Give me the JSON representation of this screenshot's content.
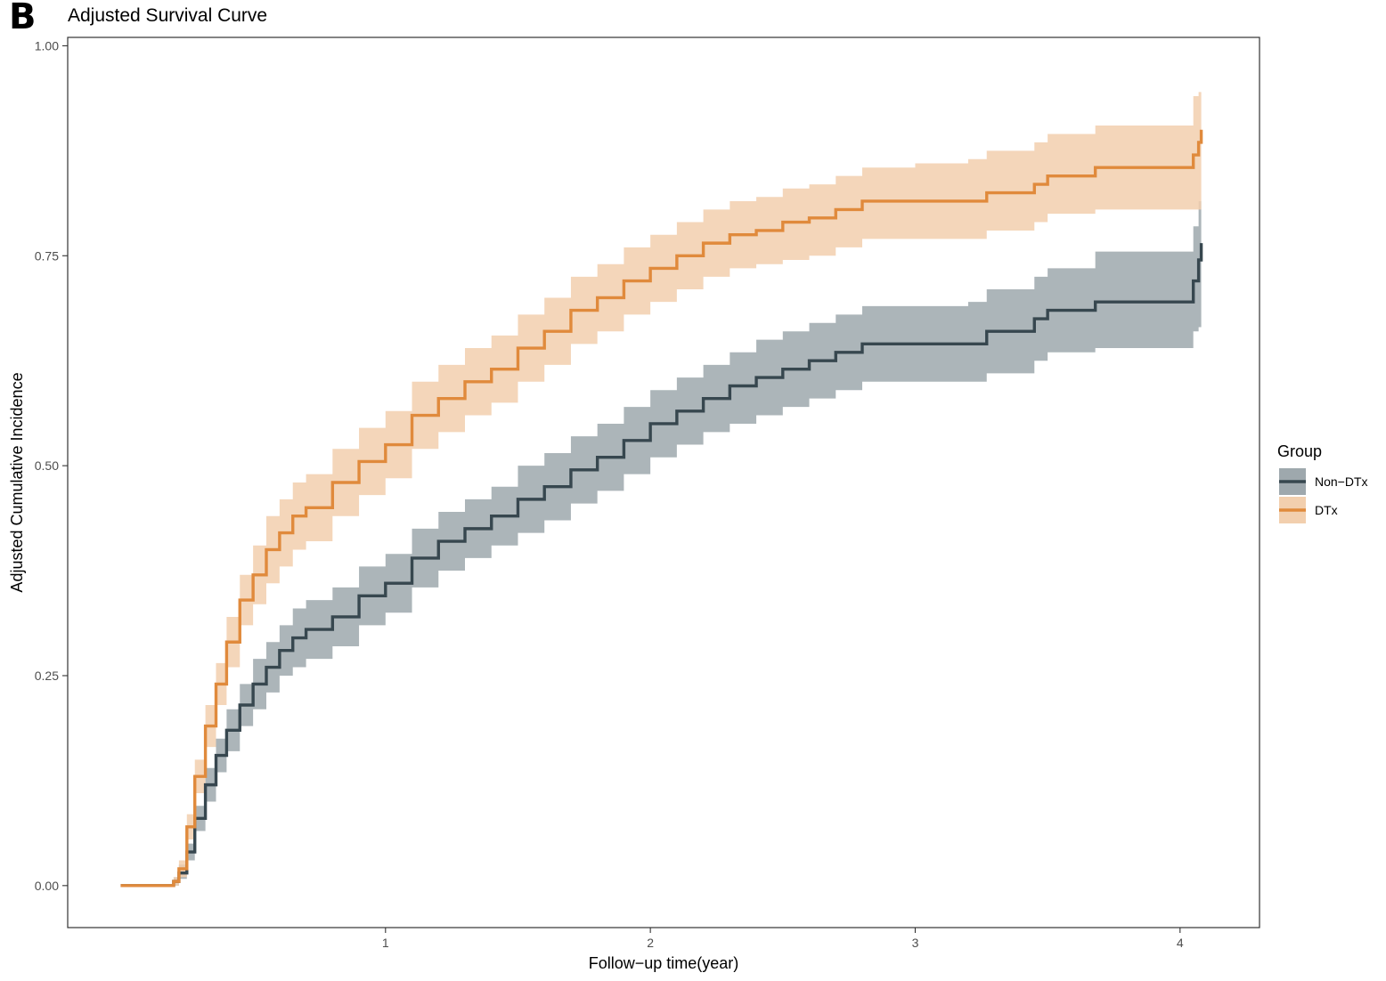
{
  "panel_label": "B",
  "chart_data": {
    "type": "line",
    "title": "Adjusted Survival Curve",
    "xlabel": "Follow−up time(year)",
    "ylabel": "Adjusted Cumulative Incidence",
    "xlim": [
      -0.2,
      4.3
    ],
    "ylim": [
      -0.05,
      1.01
    ],
    "x_ticks": [
      1,
      2,
      3,
      4
    ],
    "x_tick_labels": [
      "1",
      "2",
      "3",
      "4"
    ],
    "y_ticks": [
      0,
      0.25,
      0.5,
      0.75,
      1.0
    ],
    "y_tick_labels": [
      "0.00",
      "0.25",
      "0.50",
      "0.75",
      "1.00"
    ],
    "grid": false,
    "step": true,
    "legend": {
      "title": "Group",
      "position": "right"
    },
    "series": [
      {
        "name": "Non−DTx",
        "color": "#37474f",
        "band_color": "#9ea8ad",
        "x": [
          0.0,
          0.18,
          0.2,
          0.22,
          0.25,
          0.28,
          0.32,
          0.36,
          0.4,
          0.45,
          0.5,
          0.55,
          0.6,
          0.65,
          0.7,
          0.8,
          0.9,
          1.0,
          1.1,
          1.2,
          1.3,
          1.4,
          1.5,
          1.6,
          1.7,
          1.8,
          1.9,
          2.0,
          2.1,
          2.2,
          2.3,
          2.4,
          2.5,
          2.6,
          2.7,
          2.8,
          3.0,
          3.2,
          3.27,
          3.45,
          3.5,
          3.68,
          4.0,
          4.05,
          4.07,
          4.08
        ],
        "y": [
          0.0,
          0.0,
          0.005,
          0.015,
          0.04,
          0.08,
          0.12,
          0.155,
          0.185,
          0.215,
          0.24,
          0.26,
          0.28,
          0.295,
          0.305,
          0.32,
          0.345,
          0.36,
          0.39,
          0.41,
          0.425,
          0.44,
          0.46,
          0.475,
          0.495,
          0.51,
          0.53,
          0.55,
          0.565,
          0.58,
          0.595,
          0.605,
          0.615,
          0.625,
          0.635,
          0.645,
          0.645,
          0.645,
          0.66,
          0.675,
          0.685,
          0.695,
          0.695,
          0.72,
          0.745,
          0.765
        ],
        "lower": [
          0.0,
          0.0,
          0.0,
          0.008,
          0.03,
          0.065,
          0.1,
          0.135,
          0.16,
          0.19,
          0.21,
          0.23,
          0.25,
          0.26,
          0.27,
          0.285,
          0.31,
          0.325,
          0.355,
          0.375,
          0.39,
          0.405,
          0.42,
          0.435,
          0.455,
          0.47,
          0.49,
          0.51,
          0.525,
          0.54,
          0.55,
          0.56,
          0.57,
          0.58,
          0.59,
          0.6,
          0.6,
          0.6,
          0.61,
          0.625,
          0.635,
          0.64,
          0.64,
          0.66,
          0.665,
          0.665
        ],
        "upper": [
          0.0,
          0.0,
          0.01,
          0.025,
          0.05,
          0.095,
          0.14,
          0.175,
          0.21,
          0.24,
          0.27,
          0.29,
          0.31,
          0.33,
          0.34,
          0.355,
          0.38,
          0.395,
          0.425,
          0.445,
          0.46,
          0.475,
          0.5,
          0.515,
          0.535,
          0.55,
          0.57,
          0.59,
          0.605,
          0.62,
          0.635,
          0.65,
          0.66,
          0.67,
          0.68,
          0.69,
          0.69,
          0.695,
          0.71,
          0.725,
          0.735,
          0.755,
          0.755,
          0.785,
          0.815,
          0.815
        ]
      },
      {
        "name": "DTx",
        "color": "#e08a3c",
        "band_color": "#f2cfae",
        "x": [
          0.0,
          0.18,
          0.2,
          0.22,
          0.25,
          0.28,
          0.32,
          0.36,
          0.4,
          0.45,
          0.5,
          0.55,
          0.6,
          0.65,
          0.7,
          0.8,
          0.9,
          1.0,
          1.1,
          1.2,
          1.3,
          1.4,
          1.5,
          1.6,
          1.7,
          1.8,
          1.9,
          2.0,
          2.1,
          2.2,
          2.3,
          2.4,
          2.5,
          2.6,
          2.7,
          2.8,
          3.0,
          3.2,
          3.27,
          3.45,
          3.5,
          3.68,
          4.0,
          4.05,
          4.07,
          4.08
        ],
        "y": [
          0.0,
          0.0,
          0.005,
          0.02,
          0.07,
          0.13,
          0.19,
          0.24,
          0.29,
          0.34,
          0.37,
          0.4,
          0.42,
          0.44,
          0.45,
          0.48,
          0.505,
          0.525,
          0.56,
          0.58,
          0.6,
          0.615,
          0.64,
          0.66,
          0.685,
          0.7,
          0.72,
          0.735,
          0.75,
          0.765,
          0.775,
          0.78,
          0.79,
          0.795,
          0.805,
          0.815,
          0.815,
          0.815,
          0.825,
          0.835,
          0.845,
          0.855,
          0.855,
          0.87,
          0.885,
          0.9
        ],
        "lower": [
          0.0,
          0.0,
          0.0,
          0.01,
          0.055,
          0.11,
          0.165,
          0.215,
          0.26,
          0.31,
          0.335,
          0.36,
          0.38,
          0.4,
          0.41,
          0.44,
          0.465,
          0.485,
          0.52,
          0.54,
          0.56,
          0.575,
          0.6,
          0.62,
          0.645,
          0.66,
          0.68,
          0.695,
          0.71,
          0.725,
          0.735,
          0.74,
          0.745,
          0.75,
          0.76,
          0.77,
          0.77,
          0.77,
          0.78,
          0.79,
          0.8,
          0.805,
          0.805,
          0.805,
          0.805,
          0.805
        ],
        "upper": [
          0.0,
          0.0,
          0.01,
          0.03,
          0.085,
          0.15,
          0.215,
          0.265,
          0.32,
          0.37,
          0.405,
          0.44,
          0.46,
          0.48,
          0.49,
          0.52,
          0.545,
          0.565,
          0.6,
          0.62,
          0.64,
          0.655,
          0.68,
          0.7,
          0.725,
          0.74,
          0.76,
          0.775,
          0.79,
          0.805,
          0.815,
          0.82,
          0.83,
          0.835,
          0.845,
          0.855,
          0.86,
          0.865,
          0.875,
          0.885,
          0.895,
          0.905,
          0.905,
          0.94,
          0.945,
          0.945
        ]
      }
    ]
  }
}
